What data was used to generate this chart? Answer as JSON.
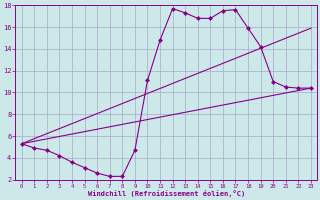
{
  "xlabel": "Windchill (Refroidissement éolien,°C)",
  "bg_color": "#cce8e8",
  "grid_color": "#aaaacc",
  "line_color": "#880088",
  "xlim": [
    -0.5,
    23.5
  ],
  "ylim": [
    2,
    18
  ],
  "xticks": [
    0,
    1,
    2,
    3,
    4,
    5,
    6,
    7,
    8,
    9,
    10,
    11,
    12,
    13,
    14,
    15,
    16,
    17,
    18,
    19,
    20,
    21,
    22,
    23
  ],
  "yticks": [
    2,
    4,
    6,
    8,
    10,
    12,
    14,
    16,
    18
  ],
  "curve1_x": [
    0,
    1,
    2,
    3,
    4,
    5,
    6,
    7,
    8,
    9,
    10,
    11,
    12,
    13,
    14,
    15,
    16,
    17,
    18,
    19,
    20,
    21,
    22,
    23
  ],
  "curve1_y": [
    5.3,
    4.9,
    4.7,
    4.2,
    3.6,
    3.1,
    2.6,
    2.3,
    2.3,
    4.7,
    11.1,
    14.8,
    17.7,
    17.3,
    16.8,
    16.8,
    17.5,
    17.6,
    15.9,
    14.2,
    11.0,
    10.5,
    10.4,
    10.4
  ],
  "curve2_x": [
    0,
    23
  ],
  "curve2_y": [
    5.3,
    10.4
  ],
  "curve3_x": [
    0,
    23
  ],
  "curve3_y": [
    5.3,
    15.9
  ],
  "marker_size": 2.5,
  "line_width": 0.8
}
